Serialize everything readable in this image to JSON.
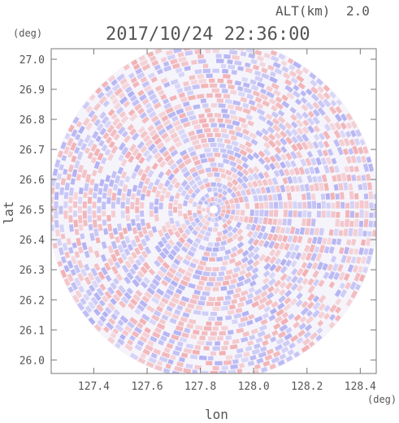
{
  "chart_data": {
    "type": "heatmap",
    "subtype": "polar-radar-sweep",
    "title": "2017/10/24 22:36:00",
    "altitude_label": "ALT(km)",
    "altitude_value": "2.0",
    "xlabel": "lon",
    "ylabel": "lat",
    "x_unit": "(deg)",
    "y_unit": "(deg)",
    "xlim": [
      127.24,
      128.46
    ],
    "ylim": [
      25.955,
      27.035
    ],
    "x_ticks": [
      127.4,
      127.6,
      127.8,
      128.0,
      128.2,
      128.4
    ],
    "x_tick_labels": [
      "127.4",
      "127.6",
      "127.8",
      "128.0",
      "128.2",
      "128.4"
    ],
    "y_ticks": [
      26.0,
      26.1,
      26.2,
      26.3,
      26.4,
      26.5,
      26.6,
      26.7,
      26.8,
      26.9,
      27.0
    ],
    "y_tick_labels": [
      "26.0",
      "26.1",
      "26.2",
      "26.3",
      "26.4",
      "26.5",
      "26.6",
      "26.7",
      "26.8",
      "26.9",
      "27.0"
    ],
    "radar_center": {
      "lon": 127.85,
      "lat": 26.5
    },
    "range_radius_lon": 0.62,
    "range_radius_lat": 0.57,
    "colormap": {
      "negative": "#8888ee",
      "zero": "#ffffff",
      "positive": "#f08888"
    },
    "grid": false
  }
}
